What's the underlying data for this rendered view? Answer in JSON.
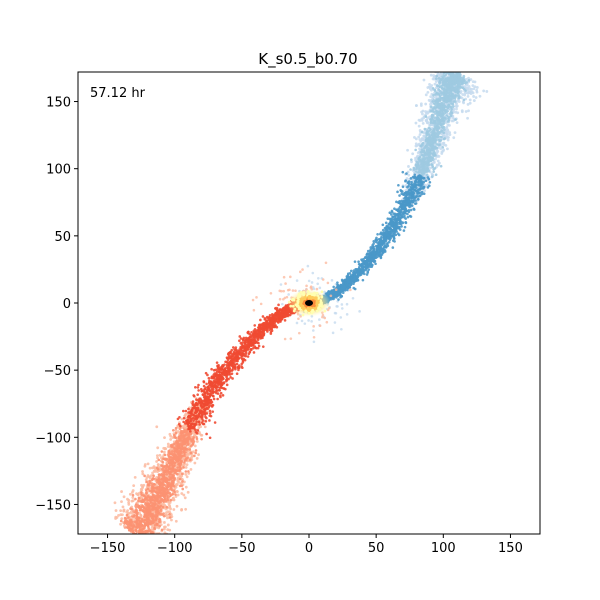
{
  "chart_data": {
    "type": "scatter",
    "title": "K_s0.5_b0.70",
    "annotation": "57.12 hr",
    "xlabel": "",
    "ylabel": "",
    "xlim": [
      -172,
      172
    ],
    "ylim": [
      -172,
      172
    ],
    "x_ticks": [
      -150,
      -100,
      -50,
      0,
      50,
      100,
      150
    ],
    "x_tick_labels": [
      "−150",
      "−100",
      "−50",
      "0",
      "50",
      "100",
      "150"
    ],
    "y_ticks": [
      -150,
      -100,
      -50,
      0,
      50,
      100,
      150
    ],
    "y_tick_labels": [
      "−150",
      "−100",
      "−50",
      "0",
      "50",
      "100",
      "150"
    ],
    "grid": false,
    "series": [
      {
        "color_light": "#c6dbef",
        "color_mid": "#9ecae1",
        "color_dark": "#4a98c9",
        "spine": [
          [
            5,
            0
          ],
          [
            12,
            3
          ],
          [
            22,
            9
          ],
          [
            35,
            20
          ],
          [
            48,
            35
          ],
          [
            60,
            52
          ],
          [
            72,
            72
          ],
          [
            82,
            92
          ],
          [
            90,
            115
          ],
          [
            97,
            140
          ],
          [
            104,
            160
          ],
          [
            110,
            172
          ]
        ],
        "halo_center": [
          86,
          120
        ],
        "halo_width": [
          22,
          48
        ],
        "core_width": 4
      },
      {
        "color_light": "#fcbba1",
        "color_mid": "#fc9272",
        "color_dark": "#ef4a32",
        "spine": [
          [
            -5,
            0
          ],
          [
            -12,
            -3
          ],
          [
            -22,
            -9
          ],
          [
            -35,
            -20
          ],
          [
            -50,
            -35
          ],
          [
            -64,
            -52
          ],
          [
            -78,
            -72
          ],
          [
            -88,
            -92
          ],
          [
            -98,
            -112
          ],
          [
            -108,
            -135
          ],
          [
            -118,
            -155
          ],
          [
            -130,
            -172
          ]
        ],
        "halo_center": [
          -112,
          -130
        ],
        "halo_width": [
          24,
          48
        ],
        "core_width": 5
      }
    ],
    "core": {
      "center": [
        0,
        0
      ],
      "colors": [
        "#ffffb2",
        "#fecc5c",
        "#fd8d3c",
        "#000000"
      ]
    }
  }
}
